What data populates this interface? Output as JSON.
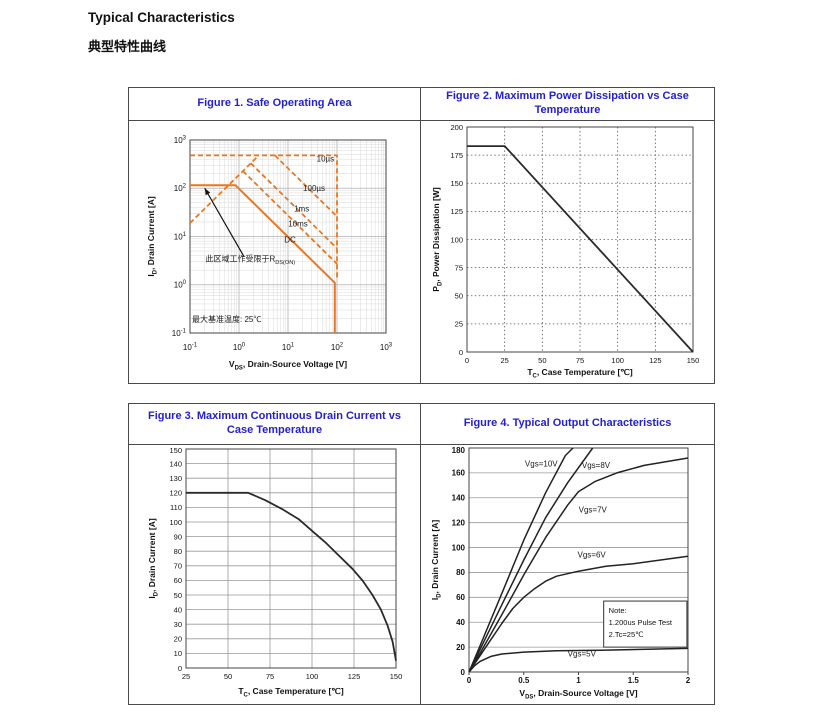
{
  "page": {
    "heading_en": "Typical Characteristics",
    "heading_zh": "典型特性曲线"
  },
  "colors": {
    "accent_orange": "#E87722",
    "title_blue": "#2222CC",
    "curve_black": "#2a2a2a"
  },
  "chart_data": [
    {
      "id": "figure1",
      "type": "line",
      "title": "Figure 1. Safe Operating Area",
      "xlabel": "V~DS~, Drain-Source Voltage [V]",
      "ylabel": "I~D~, Drain Current [A]",
      "log": true,
      "xlim": [
        0.1,
        1000
      ],
      "ylim": [
        0.1,
        1000
      ],
      "xticks": [
        [
          0.1,
          "10^-1"
        ],
        [
          1,
          "10^0"
        ],
        [
          10,
          "10^1"
        ],
        [
          100,
          "10^2"
        ],
        [
          1000,
          "10^3"
        ]
      ],
      "yticks": [
        [
          0.1,
          "10^-1"
        ],
        [
          1,
          "10^0"
        ],
        [
          10,
          "10^1"
        ],
        [
          100,
          "10^2"
        ],
        [
          1000,
          "10^3"
        ]
      ],
      "grid": {
        "mode": "log"
      },
      "series_color": "#E87722",
      "tick_size": 8,
      "series": [
        {
          "name": "pulsed-current-cap-10us",
          "dash": true,
          "width": 1.8,
          "points": [
            [
              0.1,
              480
            ],
            [
              100,
              480
            ],
            [
              100,
              1.3
            ]
          ]
        },
        {
          "name": "rdson-limit-line",
          "dash": true,
          "width": 1.8,
          "points": [
            [
              0.1,
              19
            ],
            [
              2.53,
              480
            ]
          ]
        },
        {
          "name": "limit-100us",
          "dash": true,
          "width": 1.8,
          "points": [
            [
              5.4,
              480
            ],
            [
              100,
              26
            ]
          ]
        },
        {
          "name": "limit-1ms",
          "dash": true,
          "width": 1.8,
          "points": [
            [
              1.73,
              330
            ],
            [
              100,
              5.7
            ]
          ]
        },
        {
          "name": "limit-10ms",
          "dash": true,
          "width": 1.8,
          "points": [
            [
              1.2,
              228
            ],
            [
              100,
              2.7
            ]
          ]
        },
        {
          "name": "limit-dc",
          "dash": false,
          "width": 2,
          "points": [
            [
              0.1,
              115
            ],
            [
              0.85,
              115
            ],
            [
              90,
              1.1
            ],
            [
              90,
              0.1
            ]
          ]
        }
      ],
      "labels": [
        {
          "text": "10µs",
          "x": 58,
          "y": 360
        },
        {
          "text": "100µs",
          "x": 34,
          "y": 88
        },
        {
          "text": "1ms",
          "x": 19,
          "y": 33
        },
        {
          "text": "10ms",
          "x": 16,
          "y": 16
        },
        {
          "text": "DC",
          "x": 11,
          "y": 7.6
        },
        {
          "text": "此区域工作受限于R~DS(ON)~",
          "x": 1.7,
          "y": 3.0
        },
        {
          "text": "最大基准温度: 25℃",
          "x": 0.11,
          "y": 0.17,
          "anchor": "start"
        }
      ],
      "arrow": {
        "x1": 1.27,
        "y1": 3.8,
        "x2": 0.2,
        "y2": 100
      }
    },
    {
      "id": "figure2",
      "type": "line",
      "title": "Figure 2. Maximum Power Dissipation vs Case Temperature",
      "xlabel": "T~C~, Case Temperature [℃]",
      "ylabel": "P~D~, Power Dissipation [W]",
      "xlim": [
        0,
        150
      ],
      "ylim": [
        0,
        200
      ],
      "xticks": [
        [
          0,
          "0"
        ],
        [
          25,
          "25"
        ],
        [
          50,
          "50"
        ],
        [
          75,
          "75"
        ],
        [
          100,
          "100"
        ],
        [
          125,
          "125"
        ],
        [
          150,
          "150"
        ]
      ],
      "yticks": [
        [
          0,
          "0"
        ],
        [
          25,
          "25"
        ],
        [
          50,
          "50"
        ],
        [
          75,
          "75"
        ],
        [
          100,
          "100"
        ],
        [
          125,
          "125"
        ],
        [
          150,
          "150"
        ],
        [
          175,
          "175"
        ],
        [
          200,
          "200"
        ]
      ],
      "grid": {
        "mode": "linear",
        "x_step": 25,
        "y_step": 25,
        "style": "dotted"
      },
      "tick_size": 7.5,
      "series": [
        {
          "name": "power-derating",
          "color": "#2a2a2a",
          "width": 1.8,
          "points": [
            [
              0,
              183
            ],
            [
              25,
              183
            ],
            [
              150,
              0
            ]
          ]
        }
      ]
    },
    {
      "id": "figure3",
      "type": "line",
      "title": "Figure 3. Maximum Continuous Drain Current vs Case Temperature",
      "xlabel": "T~C~, Case Temperature [℃]",
      "ylabel": "I~D~, Drain Current [A]",
      "xlim": [
        25,
        150
      ],
      "ylim": [
        0,
        150
      ],
      "xticks": [
        [
          25,
          "25"
        ],
        [
          50,
          "50"
        ],
        [
          75,
          "75"
        ],
        [
          100,
          "100"
        ],
        [
          125,
          "125"
        ],
        [
          150,
          "150"
        ]
      ],
      "yticks": [
        [
          0,
          "0"
        ],
        [
          10,
          "10"
        ],
        [
          20,
          "20"
        ],
        [
          30,
          "30"
        ],
        [
          40,
          "40"
        ],
        [
          50,
          "50"
        ],
        [
          60,
          "60"
        ],
        [
          70,
          "70"
        ],
        [
          80,
          "80"
        ],
        [
          90,
          "90"
        ],
        [
          100,
          "100"
        ],
        [
          110,
          "110"
        ],
        [
          120,
          "120"
        ],
        [
          130,
          "130"
        ],
        [
          140,
          "140"
        ],
        [
          150,
          "150"
        ]
      ],
      "grid": {
        "mode": "linear",
        "x_step": 25,
        "y_step": 10,
        "style": "solid"
      },
      "tick_size": 7.5,
      "series": [
        {
          "name": "current-derating",
          "color": "#2a2a2a",
          "width": 1.8,
          "points": [
            [
              25,
              120
            ],
            [
              62,
              120
            ],
            [
              72,
              115
            ],
            [
              82,
              109
            ],
            [
              92,
              102
            ],
            [
              100,
              94
            ],
            [
              108,
              86
            ],
            [
              116,
              77
            ],
            [
              124,
              68
            ],
            [
              130,
              60
            ],
            [
              136,
              50
            ],
            [
              141,
              40
            ],
            [
              145,
              29
            ],
            [
              148,
              18
            ],
            [
              150,
              5
            ]
          ]
        }
      ]
    },
    {
      "id": "figure4",
      "type": "line",
      "title": "Figure 4. Typical Output Characteristics",
      "xlabel": "V~DS~, Drain-Source Voltage [V]",
      "ylabel": "I~D~, Drain Current [A]",
      "xlim": [
        0,
        2
      ],
      "ylim": [
        0,
        180
      ],
      "xticks": [
        [
          0,
          "0"
        ],
        [
          0.5,
          "0.5"
        ],
        [
          1,
          "1"
        ],
        [
          1.5,
          "1.5"
        ],
        [
          2,
          "2"
        ]
      ],
      "yticks": [
        [
          0,
          "0"
        ],
        [
          20,
          "20"
        ],
        [
          40,
          "40"
        ],
        [
          60,
          "60"
        ],
        [
          80,
          "80"
        ],
        [
          100,
          "100"
        ],
        [
          120,
          "120"
        ],
        [
          140,
          "140"
        ],
        [
          160,
          "160"
        ],
        [
          180,
          "180"
        ]
      ],
      "grid": {
        "mode": "linear",
        "y_step": 20,
        "style": "solid"
      },
      "tick_size": 8,
      "tick_bold": true,
      "x_tickmarks": true,
      "series": [
        {
          "name": "vgs-10v",
          "color": "#222222",
          "width": 1.5,
          "points": [
            [
              0,
              0
            ],
            [
              0.1,
              21
            ],
            [
              0.3,
              63
            ],
            [
              0.5,
              106
            ],
            [
              0.7,
              144
            ],
            [
              0.88,
              174
            ],
            [
              0.95,
              180
            ]
          ]
        },
        {
          "name": "vgs-8v",
          "color": "#222222",
          "width": 1.5,
          "points": [
            [
              0,
              0
            ],
            [
              0.1,
              18
            ],
            [
              0.3,
              54
            ],
            [
              0.5,
              90
            ],
            [
              0.7,
              124
            ],
            [
              0.9,
              152
            ],
            [
              1.13,
              180
            ]
          ]
        },
        {
          "name": "vgs-7v",
          "color": "#222222",
          "width": 1.5,
          "points": [
            [
              0,
              0
            ],
            [
              0.1,
              15
            ],
            [
              0.3,
              46
            ],
            [
              0.5,
              78
            ],
            [
              0.7,
              108
            ],
            [
              0.9,
              134
            ],
            [
              1.0,
              145
            ],
            [
              1.15,
              153
            ],
            [
              1.35,
              160
            ],
            [
              1.6,
              166
            ],
            [
              2,
              172
            ]
          ]
        },
        {
          "name": "vgs-6v",
          "color": "#222222",
          "width": 1.5,
          "points": [
            [
              0,
              0
            ],
            [
              0.1,
              13
            ],
            [
              0.2,
              26
            ],
            [
              0.3,
              39
            ],
            [
              0.4,
              51
            ],
            [
              0.5,
              60
            ],
            [
              0.6,
              67
            ],
            [
              0.7,
              73
            ],
            [
              0.8,
              77
            ],
            [
              1.0,
              81
            ],
            [
              1.25,
              85
            ],
            [
              1.5,
              87
            ],
            [
              2,
              93
            ]
          ]
        },
        {
          "name": "vgs-5v",
          "color": "#222222",
          "width": 1.5,
          "points": [
            [
              0,
              0
            ],
            [
              0.05,
              5
            ],
            [
              0.1,
              8.5
            ],
            [
              0.2,
              12.5
            ],
            [
              0.3,
              14.5
            ],
            [
              0.5,
              16
            ],
            [
              0.8,
              17
            ],
            [
              1.2,
              17.5
            ],
            [
              2,
              19
            ]
          ]
        }
      ],
      "labels": [
        {
          "text": "Vgs=10V",
          "x": 0.66,
          "y": 165
        },
        {
          "text": "Vgs=8V",
          "x": 1.16,
          "y": 164
        },
        {
          "text": "Vgs=7V",
          "x": 1.13,
          "y": 128
        },
        {
          "text": "Vgs=6V",
          "x": 1.12,
          "y": 92
        },
        {
          "text": "Vgs=5V",
          "x": 1.03,
          "y": 12.5
        }
      ],
      "note": {
        "x1": 1.23,
        "y1": 20,
        "x2": 1.99,
        "y2": 57,
        "lines": [
          "Note:",
          "1.200us Pulse Test",
          "2.Tc=25℃"
        ]
      }
    }
  ]
}
